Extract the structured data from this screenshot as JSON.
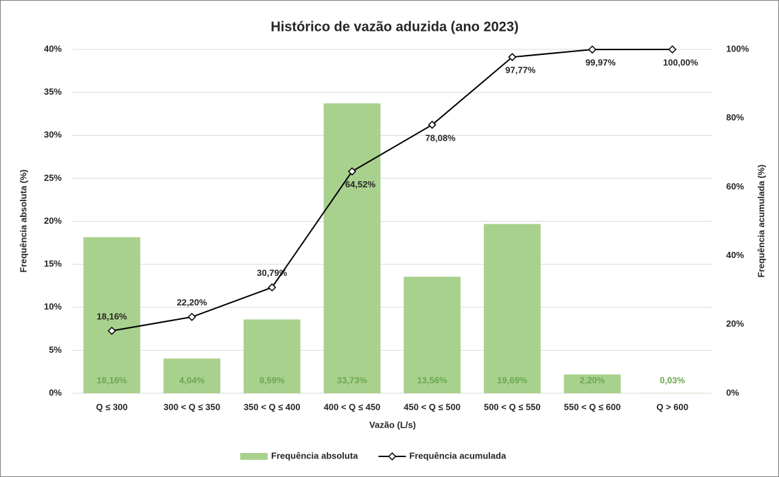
{
  "chart_data": {
    "type": "bar",
    "title": "Histórico de vazão aduzida (ano 2023)",
    "xlabel": "Vazão (L/s)",
    "ylabel": "Frequência absoluta (%)",
    "y2label": "Frequência acumulada (%)",
    "categories": [
      "Q ≤ 300",
      "300 < Q ≤ 350",
      "350 < Q ≤ 400",
      "400 < Q ≤ 450",
      "450 < Q ≤ 500",
      "500 < Q ≤ 550",
      "550 < Q ≤ 600",
      "Q > 600"
    ],
    "series": [
      {
        "name": "Frequência absoluta",
        "type": "bar",
        "color": "#a9d18e",
        "label_color": "#6aa84f",
        "values": [
          18.16,
          4.04,
          8.59,
          33.73,
          13.56,
          19.69,
          2.2,
          0.03
        ],
        "value_labels": [
          "18,16%",
          "4,04%",
          "8,59%",
          "33,73%",
          "13,56%",
          "19,69%",
          "2,20%",
          "0,03%"
        ]
      },
      {
        "name": "Frequência acumulada",
        "type": "line",
        "axis": "y2",
        "color": "#000000",
        "values": [
          18.16,
          22.2,
          30.79,
          64.52,
          78.08,
          97.77,
          99.97,
          100
        ],
        "value_labels": [
          "18,16%",
          "22,20%",
          "30,79%",
          "64,52%",
          "78,08%",
          "97,77%",
          "99,97%",
          "100,00%"
        ]
      }
    ],
    "ylim": [
      0,
      40
    ],
    "yticks": [
      {
        "value": 0,
        "label": "0%"
      },
      {
        "value": 5,
        "label": "5%"
      },
      {
        "value": 10,
        "label": "10%"
      },
      {
        "value": 15,
        "label": "15%"
      },
      {
        "value": 20,
        "label": "20%"
      },
      {
        "value": 25,
        "label": "25%"
      },
      {
        "value": 30,
        "label": "30%"
      },
      {
        "value": 35,
        "label": "35%"
      },
      {
        "value": 40,
        "label": "40%"
      }
    ],
    "y2lim": [
      0,
      100
    ],
    "y2ticks": [
      {
        "value": 0,
        "label": "0%"
      },
      {
        "value": 20,
        "label": "20%"
      },
      {
        "value": 40,
        "label": "40%"
      },
      {
        "value": 60,
        "label": "60%"
      },
      {
        "value": 80,
        "label": "80%"
      },
      {
        "value": 100,
        "label": "100%"
      }
    ],
    "grid": true,
    "legend": "bottom"
  }
}
